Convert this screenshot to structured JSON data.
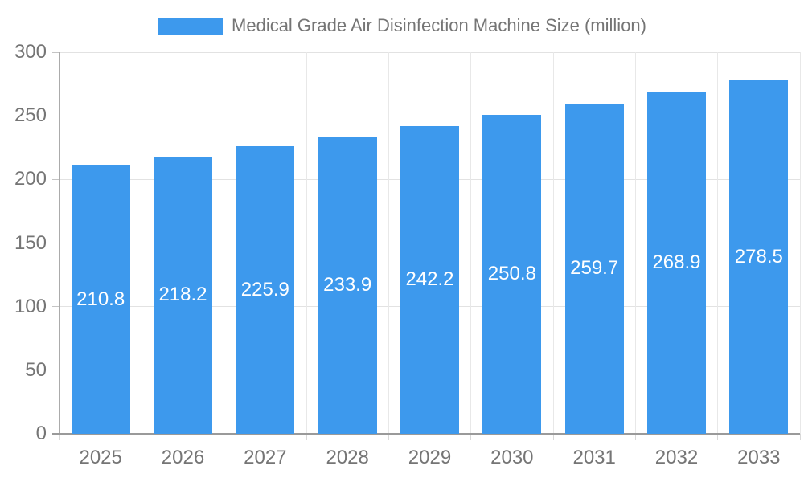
{
  "chart_data": {
    "type": "bar",
    "title": "Medical Grade Air Disinfection Machine Size (million)",
    "categories": [
      "2025",
      "2026",
      "2027",
      "2028",
      "2029",
      "2030",
      "2031",
      "2032",
      "2033"
    ],
    "values": [
      210.8,
      218.2,
      225.9,
      233.9,
      242.2,
      250.8,
      259.7,
      268.9,
      278.5
    ],
    "xlabel": "",
    "ylabel": "",
    "ylim": [
      0,
      300
    ],
    "ytick_step": 50,
    "yticks": [
      0,
      50,
      100,
      150,
      200,
      250,
      300
    ],
    "grid": true,
    "legend_position": "top-center",
    "value_labels": "inside-center",
    "colors": {
      "bar": "#3D99ED",
      "bar_value_text": "#ffffff",
      "axis_text": "#757575",
      "legend_text": "#757575",
      "h_gridline": "#e2e2e2",
      "v_gridline": "#e8e8e8",
      "y_axis_line": "#ababab",
      "x_axis_line": "#9a9a9a",
      "y_tick": "#c4c4c4",
      "x_tick": "#d9d9d9",
      "background": "#ffffff"
    }
  }
}
